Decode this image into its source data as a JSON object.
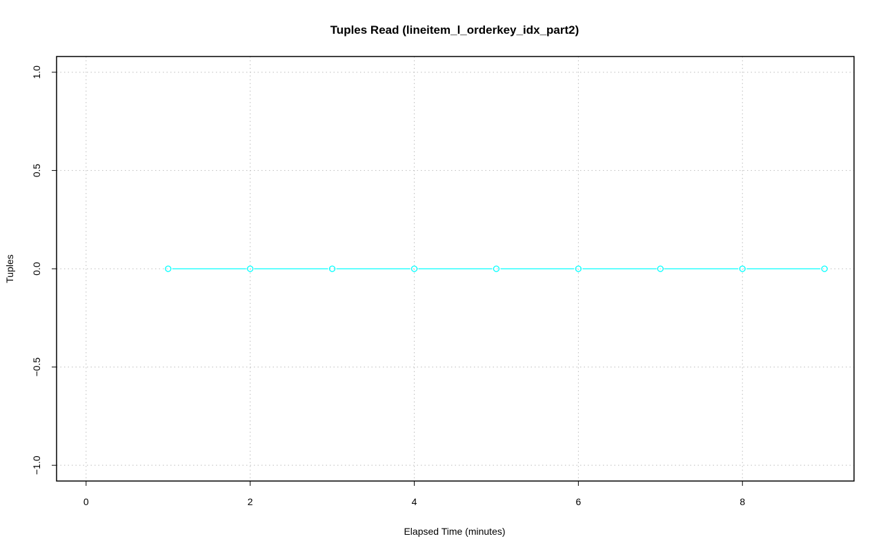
{
  "chart_data": {
    "type": "line",
    "title": "Tuples Read (lineitem_l_orderkey_idx_part2)",
    "xlabel": "Elapsed Time (minutes)",
    "ylabel": "Tuples",
    "xlim": [
      -0.36,
      9.36
    ],
    "ylim": [
      -1.08,
      1.08
    ],
    "x_ticks": [
      0,
      2,
      4,
      6,
      8
    ],
    "y_ticks": [
      -1.0,
      -0.5,
      0.0,
      0.5,
      1.0
    ],
    "x_tick_labels": [
      "0",
      "2",
      "4",
      "6",
      "8"
    ],
    "y_tick_labels": [
      "−1.0",
      "−0.5",
      "0.0",
      "0.5",
      "1.0"
    ],
    "grid": true,
    "series": [
      {
        "color": "#00ffff",
        "marker": "open-circle",
        "x": [
          1,
          2,
          3,
          4,
          5,
          6,
          7,
          8,
          9
        ],
        "y": [
          0,
          0,
          0,
          0,
          0,
          0,
          0,
          0,
          0
        ]
      }
    ]
  }
}
